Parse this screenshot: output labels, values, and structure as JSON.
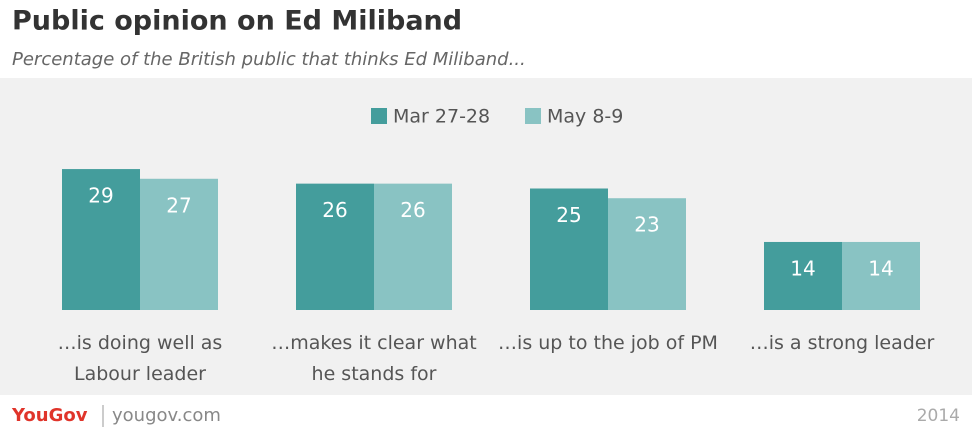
{
  "chart_data": {
    "type": "bar",
    "title": "Public opinion on Ed Miliband",
    "subtitle": "Percentage of the British public that thinks Ed Miliband...",
    "categories": [
      "…is doing well as Labour leader",
      "…makes it clear what he stands for",
      "…is up to the job of PM",
      "…is a strong leader"
    ],
    "series": [
      {
        "name": "Mar 27-28",
        "color": "#449d9c",
        "values": [
          29,
          26,
          25,
          14
        ]
      },
      {
        "name": "May 8-9",
        "color": "#89c3c3",
        "values": [
          27,
          26,
          23,
          14
        ]
      }
    ],
    "footer": {
      "brand": "YouGov",
      "site": "yougov.com",
      "year": "2014"
    }
  }
}
